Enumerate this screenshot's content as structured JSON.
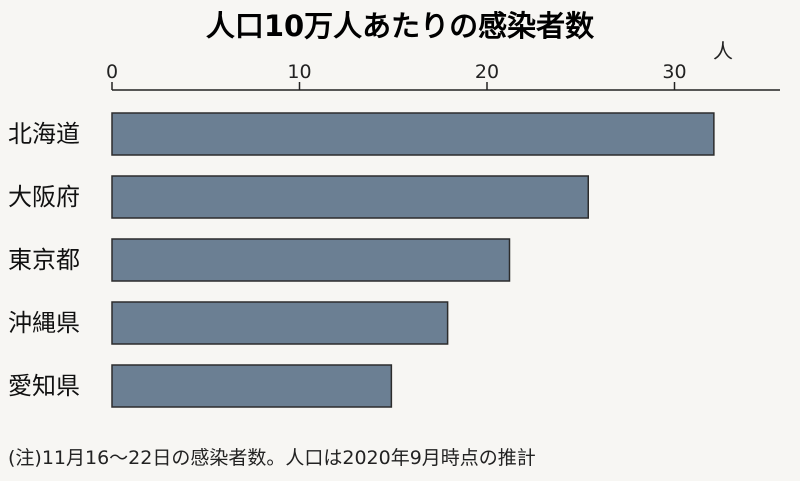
{
  "chart_data": {
    "type": "bar",
    "orientation": "horizontal",
    "title": "人口10万人あたりの感染者数",
    "unit": "人",
    "categories": [
      "北海道",
      "大阪府",
      "東京都",
      "沖縄県",
      "愛知県"
    ],
    "values": [
      32.1,
      25.4,
      21.2,
      17.9,
      14.9
    ],
    "xlim": [
      0,
      35
    ],
    "ticks": [
      0,
      10,
      20,
      30
    ],
    "tick_labels": [
      "0",
      "10",
      "20",
      "30"
    ],
    "grid": false,
    "bar_color": "#6b7f93",
    "note": "(注)11月16〜22日の感染者数。人口は2020年9月時点の推計"
  }
}
